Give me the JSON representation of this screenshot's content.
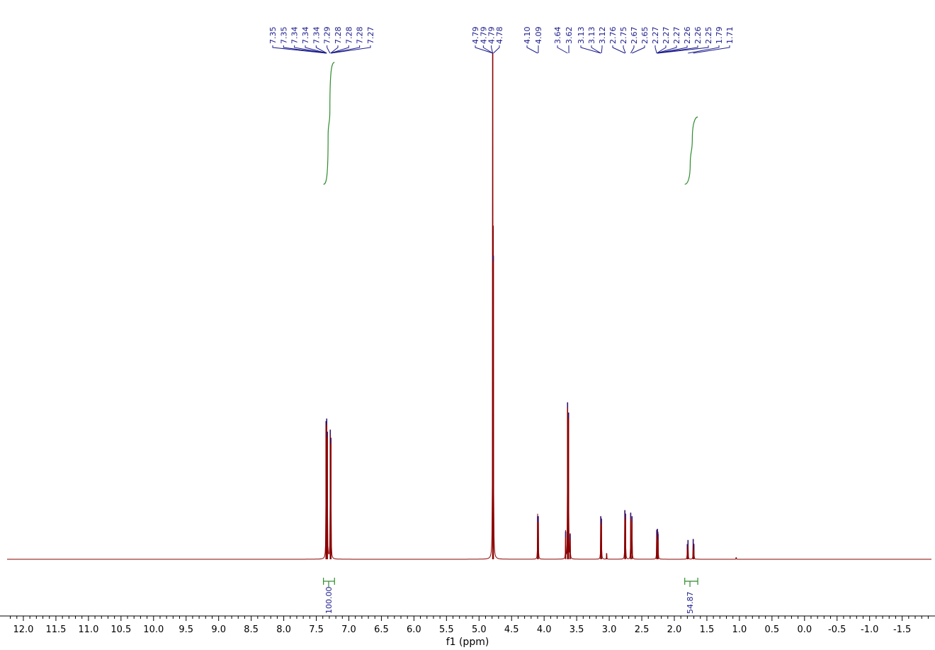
{
  "chart_data": {
    "type": "line",
    "title": "",
    "xlabel": "f1 (ppm)",
    "ylabel": "",
    "x_reversed": true,
    "xlim": [
      12.25,
      -1.95
    ],
    "x_ticks": [
      12.0,
      11.5,
      11.0,
      10.5,
      10.0,
      9.5,
      9.0,
      8.5,
      8.0,
      7.5,
      7.0,
      6.5,
      6.0,
      5.5,
      5.0,
      4.5,
      4.0,
      3.5,
      3.0,
      2.5,
      2.0,
      1.5,
      1.0,
      0.5,
      0.0,
      -0.5,
      -1.0,
      -1.5
    ],
    "x_tick_labels": [
      "12.0",
      "11.5",
      "11.0",
      "10.5",
      "10.0",
      "9.5",
      "9.0",
      "8.5",
      "8.0",
      "7.5",
      "7.0",
      "6.5",
      "6.0",
      "5.5",
      "5.0",
      "4.5",
      "4.0",
      "3.5",
      "3.0",
      "2.5",
      "2.0",
      "1.5",
      "1.0",
      "0.5",
      "0.0",
      "-0.5",
      "-1.0",
      "-1.5"
    ],
    "grid": false,
    "colors": {
      "spectrum": "#8b0000",
      "peak_labels": "#1a1a8c",
      "integrals": "#2e8b2e",
      "axis": "#000000"
    },
    "peak_groups": [
      {
        "anchor_ppm": 7.31,
        "labels": [
          "7.35",
          "7.35",
          "7.34",
          "7.34",
          "7.34",
          "7.29",
          "7.28",
          "7.28",
          "7.28",
          "7.27"
        ],
        "ppm": [
          7.35,
          7.35,
          7.34,
          7.34,
          7.34,
          7.29,
          7.28,
          7.28,
          7.28,
          7.27
        ]
      },
      {
        "anchor_ppm": 4.785,
        "labels": [
          "4.79",
          "4.79",
          "4.79",
          "4.78"
        ],
        "ppm": [
          4.79,
          4.79,
          4.79,
          4.78
        ]
      },
      {
        "anchor_ppm": 4.095,
        "labels": [
          "4.10",
          "4.09"
        ],
        "ppm": [
          4.1,
          4.09
        ]
      },
      {
        "anchor_ppm": 3.63,
        "labels": [
          "3.64",
          "3.62"
        ],
        "ppm": [
          3.64,
          3.62
        ]
      },
      {
        "anchor_ppm": 2.45,
        "labels": [
          "3.13",
          "3.13",
          "3.12",
          "2.76",
          "2.75",
          "2.67",
          "2.65",
          "2.27",
          "2.27",
          "2.27",
          "2.26",
          "2.26",
          "2.25",
          "1.79",
          "1.71"
        ],
        "ppm": [
          3.13,
          3.13,
          3.12,
          2.76,
          2.75,
          2.67,
          2.65,
          2.27,
          2.27,
          2.27,
          2.26,
          2.26,
          2.25,
          1.79,
          1.71
        ]
      }
    ],
    "integrals": [
      {
        "label": "100.00",
        "from_ppm": 7.39,
        "to_ppm": 7.22,
        "center_ppm": 7.31
      },
      {
        "label": "54.87",
        "from_ppm": 1.84,
        "to_ppm": 1.64,
        "center_ppm": 1.76
      }
    ],
    "peaks": [
      {
        "ppm": 7.35,
        "height": 0.273
      },
      {
        "ppm": 7.34,
        "height": 0.278
      },
      {
        "ppm": 7.33,
        "height": 0.252
      },
      {
        "ppm": 7.285,
        "height": 0.256
      },
      {
        "ppm": 7.275,
        "height": 0.24
      },
      {
        "ppm": 4.79,
        "height": 1.0
      },
      {
        "ppm": 4.78,
        "height": 0.6
      },
      {
        "ppm": 4.1,
        "height": 0.085
      },
      {
        "ppm": 4.09,
        "height": 0.085
      },
      {
        "ppm": 3.67,
        "height": 0.055
      },
      {
        "ppm": 3.64,
        "height": 0.31
      },
      {
        "ppm": 3.625,
        "height": 0.29
      },
      {
        "ppm": 3.6,
        "height": 0.05
      },
      {
        "ppm": 3.13,
        "height": 0.085
      },
      {
        "ppm": 3.12,
        "height": 0.08
      },
      {
        "ppm": 3.04,
        "height": 0.012
      },
      {
        "ppm": 2.76,
        "height": 0.097
      },
      {
        "ppm": 2.75,
        "height": 0.09
      },
      {
        "ppm": 2.67,
        "height": 0.092
      },
      {
        "ppm": 2.65,
        "height": 0.085
      },
      {
        "ppm": 2.27,
        "height": 0.058
      },
      {
        "ppm": 2.26,
        "height": 0.06
      },
      {
        "ppm": 2.25,
        "height": 0.05
      },
      {
        "ppm": 1.8,
        "height": 0.03
      },
      {
        "ppm": 1.79,
        "height": 0.038
      },
      {
        "ppm": 1.71,
        "height": 0.04
      },
      {
        "ppm": 1.7,
        "height": 0.03
      },
      {
        "ppm": 1.05,
        "height": 0.004
      }
    ]
  }
}
